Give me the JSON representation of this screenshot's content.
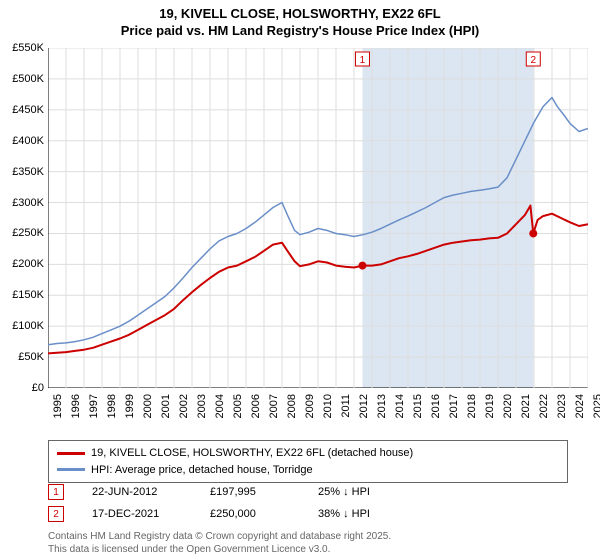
{
  "title_line1": "19, KIVELL CLOSE, HOLSWORTHY, EX22 6FL",
  "title_line2": "Price paid vs. HM Land Registry's House Price Index (HPI)",
  "chart": {
    "type": "line",
    "y_axis": {
      "min": 0,
      "max": 550000,
      "step": 50000,
      "labels": [
        "£0",
        "£50K",
        "£100K",
        "£150K",
        "£200K",
        "£250K",
        "£300K",
        "£350K",
        "£400K",
        "£450K",
        "£500K",
        "£550K"
      ],
      "font_size": 11
    },
    "x_axis": {
      "min": 1995,
      "max": 2025,
      "step": 1,
      "labels": [
        "1995",
        "1996",
        "1997",
        "1998",
        "1999",
        "2000",
        "2001",
        "2002",
        "2003",
        "2004",
        "2005",
        "2006",
        "2007",
        "2008",
        "2009",
        "2010",
        "2011",
        "2012",
        "2013",
        "2014",
        "2015",
        "2016",
        "2017",
        "2018",
        "2019",
        "2020",
        "2021",
        "2022",
        "2023",
        "2024",
        "2025"
      ],
      "font_size": 11
    },
    "shade": {
      "x_from": 2012.47,
      "x_to": 2021.96,
      "color": "#dce6f2"
    },
    "grid_color": "#dddddd",
    "background_color": "#ffffff",
    "series": [
      {
        "name": "HPI: Average price, detached house, Torridge",
        "color": "#6a8fc8",
        "width": 1.5,
        "points": [
          [
            1995,
            70000
          ],
          [
            1995.5,
            72000
          ],
          [
            1996,
            73000
          ],
          [
            1996.5,
            75000
          ],
          [
            1997,
            78000
          ],
          [
            1997.5,
            82000
          ],
          [
            1998,
            88000
          ],
          [
            1998.5,
            94000
          ],
          [
            1999,
            100000
          ],
          [
            1999.5,
            108000
          ],
          [
            2000,
            118000
          ],
          [
            2000.5,
            128000
          ],
          [
            2001,
            138000
          ],
          [
            2001.5,
            148000
          ],
          [
            2002,
            162000
          ],
          [
            2002.5,
            178000
          ],
          [
            2003,
            195000
          ],
          [
            2003.5,
            210000
          ],
          [
            2004,
            225000
          ],
          [
            2004.5,
            238000
          ],
          [
            2005,
            245000
          ],
          [
            2005.5,
            250000
          ],
          [
            2006,
            258000
          ],
          [
            2006.5,
            268000
          ],
          [
            2007,
            280000
          ],
          [
            2007.5,
            292000
          ],
          [
            2008,
            300000
          ],
          [
            2008.3,
            280000
          ],
          [
            2008.7,
            255000
          ],
          [
            2009,
            248000
          ],
          [
            2009.5,
            252000
          ],
          [
            2010,
            258000
          ],
          [
            2010.5,
            255000
          ],
          [
            2011,
            250000
          ],
          [
            2011.5,
            248000
          ],
          [
            2012,
            245000
          ],
          [
            2012.5,
            248000
          ],
          [
            2013,
            252000
          ],
          [
            2013.5,
            258000
          ],
          [
            2014,
            265000
          ],
          [
            2014.5,
            272000
          ],
          [
            2015,
            278000
          ],
          [
            2015.5,
            285000
          ],
          [
            2016,
            292000
          ],
          [
            2016.5,
            300000
          ],
          [
            2017,
            308000
          ],
          [
            2017.5,
            312000
          ],
          [
            2018,
            315000
          ],
          [
            2018.5,
            318000
          ],
          [
            2019,
            320000
          ],
          [
            2019.5,
            322000
          ],
          [
            2020,
            325000
          ],
          [
            2020.5,
            340000
          ],
          [
            2021,
            370000
          ],
          [
            2021.5,
            400000
          ],
          [
            2022,
            430000
          ],
          [
            2022.5,
            455000
          ],
          [
            2023,
            470000
          ],
          [
            2023.3,
            455000
          ],
          [
            2023.7,
            440000
          ],
          [
            2024,
            428000
          ],
          [
            2024.5,
            415000
          ],
          [
            2025,
            420000
          ]
        ]
      },
      {
        "name": "19, KIVELL CLOSE, HOLSWORTHY, EX22 6FL (detached house)",
        "color": "#cc0000",
        "width": 2,
        "points": [
          [
            1995,
            56000
          ],
          [
            1995.5,
            57000
          ],
          [
            1996,
            58000
          ],
          [
            1996.5,
            60000
          ],
          [
            1997,
            62000
          ],
          [
            1997.5,
            65000
          ],
          [
            1998,
            70000
          ],
          [
            1998.5,
            75000
          ],
          [
            1999,
            80000
          ],
          [
            1999.5,
            86000
          ],
          [
            2000,
            94000
          ],
          [
            2000.5,
            102000
          ],
          [
            2001,
            110000
          ],
          [
            2001.5,
            118000
          ],
          [
            2002,
            128000
          ],
          [
            2002.5,
            142000
          ],
          [
            2003,
            155000
          ],
          [
            2003.5,
            167000
          ],
          [
            2004,
            178000
          ],
          [
            2004.5,
            188000
          ],
          [
            2005,
            195000
          ],
          [
            2005.5,
            198000
          ],
          [
            2006,
            205000
          ],
          [
            2006.5,
            212000
          ],
          [
            2007,
            222000
          ],
          [
            2007.5,
            232000
          ],
          [
            2008,
            235000
          ],
          [
            2008.3,
            222000
          ],
          [
            2008.7,
            205000
          ],
          [
            2009,
            197000
          ],
          [
            2009.5,
            200000
          ],
          [
            2010,
            205000
          ],
          [
            2010.5,
            203000
          ],
          [
            2011,
            198000
          ],
          [
            2011.5,
            196000
          ],
          [
            2012,
            195000
          ],
          [
            2012.47,
            197995
          ],
          [
            2013,
            198000
          ],
          [
            2013.5,
            200000
          ],
          [
            2014,
            205000
          ],
          [
            2014.5,
            210000
          ],
          [
            2015,
            213000
          ],
          [
            2015.5,
            217000
          ],
          [
            2016,
            222000
          ],
          [
            2016.5,
            227000
          ],
          [
            2017,
            232000
          ],
          [
            2017.5,
            235000
          ],
          [
            2018,
            237000
          ],
          [
            2018.5,
            239000
          ],
          [
            2019,
            240000
          ],
          [
            2019.5,
            242000
          ],
          [
            2020,
            243000
          ],
          [
            2020.5,
            250000
          ],
          [
            2021,
            265000
          ],
          [
            2021.5,
            280000
          ],
          [
            2021.8,
            295000
          ],
          [
            2021.96,
            250000
          ],
          [
            2022.2,
            272000
          ],
          [
            2022.5,
            278000
          ],
          [
            2023,
            282000
          ],
          [
            2023.5,
            275000
          ],
          [
            2024,
            268000
          ],
          [
            2024.5,
            262000
          ],
          [
            2025,
            265000
          ]
        ]
      }
    ],
    "sale_markers": [
      {
        "n": "1",
        "x": 2012.47,
        "y": 197995,
        "color": "#cc0000"
      },
      {
        "n": "2",
        "x": 2021.96,
        "y": 250000,
        "color": "#cc0000"
      }
    ],
    "top_markers": [
      {
        "n": "1",
        "x": 2012.47,
        "color": "#cc0000"
      },
      {
        "n": "2",
        "x": 2021.96,
        "color": "#cc0000"
      }
    ]
  },
  "legend": {
    "rows": [
      {
        "color": "#cc0000",
        "label": "19, KIVELL CLOSE, HOLSWORTHY, EX22 6FL (detached house)"
      },
      {
        "color": "#6a8fc8",
        "label": "HPI: Average price, detached house, Torridge"
      }
    ]
  },
  "marker_table": [
    {
      "n": "1",
      "color": "#cc0000",
      "date": "22-JUN-2012",
      "price": "£197,995",
      "diff": "25% ↓ HPI"
    },
    {
      "n": "2",
      "color": "#cc0000",
      "date": "17-DEC-2021",
      "price": "£250,000",
      "diff": "38% ↓ HPI"
    }
  ],
  "footer_line1": "Contains HM Land Registry data © Crown copyright and database right 2025.",
  "footer_line2": "This data is licensed under the Open Government Licence v3.0."
}
